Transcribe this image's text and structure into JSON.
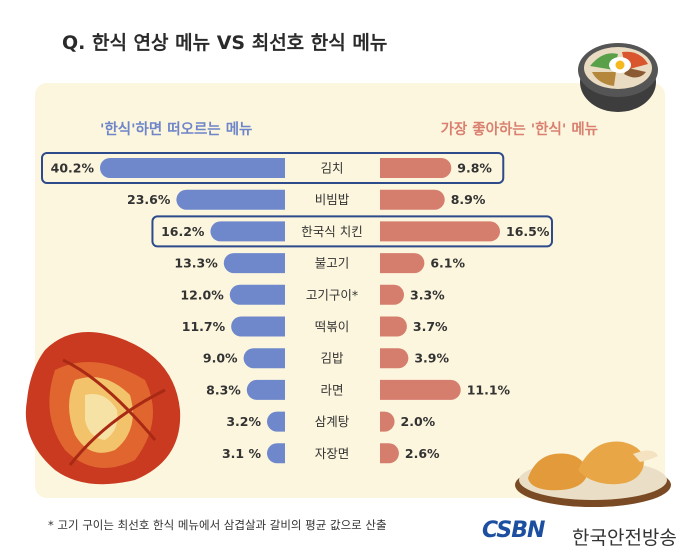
{
  "title": "Q. 한식 연상 메뉴 VS 최선호 한식 메뉴",
  "footnote": "* 고기 구이는 최선호 한식 메뉴에서 삼겹살과 갈비의 평균 값으로 산출",
  "logo": {
    "mark": "CSBN",
    "name": "한국안전방송"
  },
  "colors": {
    "left_bar": "#6f88cc",
    "right_bar": "#d67e6e",
    "highlight_border": "#2d4a8a",
    "panel": "#fcf6de"
  },
  "chart_data": {
    "type": "bar",
    "orientation": "horizontal-butterfly",
    "categories": [
      "김치",
      "비빔밥",
      "한국식 치킨",
      "불고기",
      "고기구이*",
      "떡볶이",
      "김밥",
      "라면",
      "삼계탕",
      "자장면"
    ],
    "series": [
      {
        "name": "'한식'하면 떠오르는 메뉴",
        "values": [
          40.2,
          23.6,
          16.2,
          13.3,
          12.0,
          11.7,
          9.0,
          8.3,
          3.2,
          3.1
        ],
        "labels": [
          "40.2%",
          "23.6%",
          "16.2%",
          "13.3%",
          "12.0%",
          "11.7%",
          "9.0%",
          "8.3%",
          "3.2%",
          "3.1 %"
        ]
      },
      {
        "name": "가장 좋아하는 '한식' 메뉴",
        "values": [
          9.8,
          8.9,
          16.5,
          6.1,
          3.3,
          3.7,
          3.9,
          11.1,
          2.0,
          2.6
        ],
        "labels": [
          "9.8%",
          "8.9%",
          "16.5%",
          "6.1%",
          "3.3%",
          "3.7%",
          "3.9%",
          "11.1%",
          "2.0%",
          "2.6%"
        ]
      }
    ],
    "highlighted": [
      "김치",
      "한국식 치킨"
    ],
    "xlim": [
      0,
      42
    ]
  }
}
